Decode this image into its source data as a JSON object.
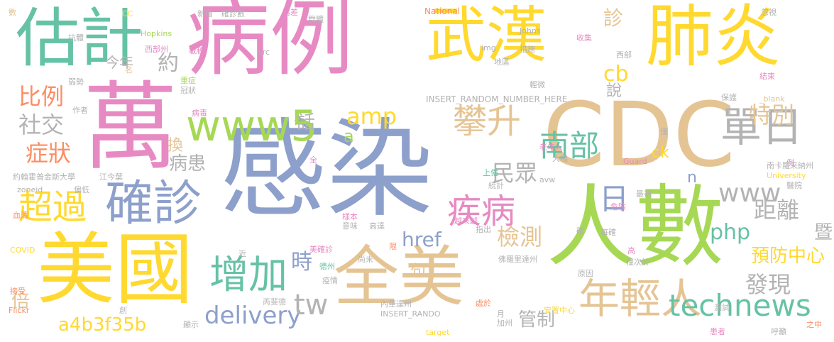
{
  "palette": {
    "blue": "#8da0cb",
    "pink": "#e78ac3",
    "yellow": "#ffd92f",
    "green": "#a6d854",
    "teal": "#66c2a5",
    "orange": "#fc8d62",
    "tan": "#e5c494",
    "gray": "#b3b3b3"
  },
  "words": [
    {
      "text": "感染",
      "color": "#8da0cb"
    },
    {
      "text": "病例",
      "color": "#e78ac3"
    },
    {
      "text": "萬",
      "color": "#e78ac3"
    },
    {
      "text": "CDC",
      "color": "#e5c494"
    },
    {
      "text": "人數",
      "color": "#a6d854"
    },
    {
      "text": "武漢",
      "color": "#ffd92f"
    },
    {
      "text": "肺炎",
      "color": "#ffd92f"
    },
    {
      "text": "美國",
      "color": "#ffd92f"
    },
    {
      "text": "全美",
      "color": "#e5c494"
    },
    {
      "text": "估計",
      "color": "#66c2a5"
    },
    {
      "text": "確診",
      "color": "#8da0cb"
    },
    {
      "text": "年輕人",
      "color": "#e5c494"
    },
    {
      "text": "增加",
      "color": "#66c2a5"
    },
    {
      "text": "www5",
      "color": "#a6d854"
    },
    {
      "text": "單日",
      "color": "#b3b3b3"
    },
    {
      "text": "超過",
      "color": "#ffd92f"
    },
    {
      "text": "technews",
      "color": "#66c2a5"
    },
    {
      "text": "攀升",
      "color": "#e5c494"
    },
    {
      "text": "疾病",
      "color": "#e78ac3"
    },
    {
      "text": "delivery",
      "color": "#8da0cb"
    },
    {
      "text": "南部",
      "color": "#66c2a5"
    },
    {
      "text": "日",
      "color": "#8da0cb"
    },
    {
      "text": "www",
      "color": "#b3b3b3"
    },
    {
      "text": "tw",
      "color": "#b3b3b3"
    },
    {
      "text": "比例",
      "color": "#fc8d62"
    },
    {
      "text": "社交",
      "color": "#b3b3b3"
    },
    {
      "text": "症狀",
      "color": "#fc8d62"
    },
    {
      "text": "amp",
      "color": "#ffd92f"
    },
    {
      "text": "href",
      "color": "#8da0cb"
    },
    {
      "text": "a4b3f35b",
      "color": "#ffd92f"
    },
    {
      "text": "特別",
      "color": "#e5c494"
    },
    {
      "text": "距離",
      "color": "#b3b3b3"
    },
    {
      "text": "發現",
      "color": "#b3b3b3"
    },
    {
      "text": "php",
      "color": "#66c2a5"
    },
    {
      "text": "民眾",
      "color": "#b3b3b3"
    },
    {
      "text": "病患",
      "color": "#b3b3b3"
    },
    {
      "text": "檢測",
      "color": "#e5c494"
    },
    {
      "text": "預防中心",
      "color": "#ffd92f"
    },
    {
      "text": "cb",
      "color": "#ffd92f"
    },
    {
      "text": "ck",
      "color": "#ffd92f"
    },
    {
      "text": "管制",
      "color": "#b3b3b3"
    },
    {
      "text": "時",
      "color": "#8da0cb"
    },
    {
      "text": "暨",
      "color": "#b3b3b3"
    },
    {
      "text": "診",
      "color": "#e5c494"
    },
    {
      "text": "換",
      "color": "#e5c494"
    },
    {
      "text": "約",
      "color": "#b3b3b3"
    },
    {
      "text": "說",
      "color": "#b3b3b3"
    },
    {
      "text": "話",
      "color": "#b3b3b3"
    },
    {
      "text": "倍",
      "color": "#e5c494"
    },
    {
      "text": "a",
      "color": "#a6d854"
    },
    {
      "text": "n",
      "color": "#8da0cb"
    },
    {
      "text": "句",
      "color": "#e5c494"
    },
    {
      "text": "今年",
      "color": "#b3b3b3"
    },
    {
      "text": "INSERT_RANDOM_NUMBER_HERE",
      "color": "#b3b3b3"
    },
    {
      "text": "Hopkins",
      "color": "#a6d854"
    },
    {
      "text": "Johns",
      "color": "#b3b3b3"
    },
    {
      "text": "National",
      "color": "#fc8d62"
    },
    {
      "text": "University",
      "color": "#ffd92f"
    },
    {
      "text": "COVID",
      "color": "#ffd92f"
    },
    {
      "text": "Flickr",
      "color": "#fc8d62"
    },
    {
      "text": "zoneid",
      "color": "#b3b3b3"
    },
    {
      "text": "Guard",
      "color": "#e78ac3"
    },
    {
      "text": "INSERT_RANDO",
      "color": "#b3b3b3"
    },
    {
      "text": "target",
      "color": "#ffd92f"
    },
    {
      "text": "_blank",
      "color": "#e5c494"
    },
    {
      "text": "img",
      "color": "#b3b3b3"
    },
    {
      "text": "src",
      "color": "#b3b3b3"
    },
    {
      "text": "avw",
      "color": "#b3b3b3"
    },
    {
      "text": "CC",
      "color": "#ffd92f"
    },
    {
      "text": "數",
      "color": "#e5c494"
    },
    {
      "text": "抗體",
      "color": "#b3b3b3"
    },
    {
      "text": "西部州",
      "color": "#e78ac3"
    },
    {
      "text": "載稿",
      "color": "#e78ac3"
    },
    {
      "text": "弱勢",
      "color": "#b3b3b3"
    },
    {
      "text": "名",
      "color": "#e5c494"
    },
    {
      "text": "作者",
      "color": "#b3b3b3"
    },
    {
      "text": "重症",
      "color": "#a6d854"
    },
    {
      "text": "冠狀",
      "color": "#b3b3b3"
    },
    {
      "text": "病毒",
      "color": "#e78ac3"
    },
    {
      "text": "約翰霍普金斯大學",
      "color": "#b3b3b3"
    },
    {
      "text": "江今葉",
      "color": "#b3b3b3"
    },
    {
      "text": "偏低",
      "color": "#b3b3b3"
    },
    {
      "text": "血清",
      "color": "#fc8d62"
    },
    {
      "text": "接受",
      "color": "#fc8d62"
    },
    {
      "text": "創",
      "color": "#b3b3b3"
    },
    {
      "text": "新增",
      "color": "#b3b3b3"
    },
    {
      "text": "確診數",
      "color": "#b3b3b3"
    },
    {
      "text": "群體",
      "color": "#b3b3b3"
    },
    {
      "text": "落差",
      "color": "#e78ac3"
    },
    {
      "text": "全",
      "color": "#e78ac3"
    },
    {
      "text": "上億",
      "color": "#66c2a5"
    },
    {
      "text": "統計",
      "color": "#b3b3b3"
    },
    {
      "text": "樣本",
      "color": "#e78ac3"
    },
    {
      "text": "意味",
      "color": "#b3b3b3"
    },
    {
      "text": "高達",
      "color": "#b3b3b3"
    },
    {
      "text": "越來越",
      "color": "#e78ac3"
    },
    {
      "text": "指出",
      "color": "#b3b3b3"
    },
    {
      "text": "美確診",
      "color": "#e78ac3"
    },
    {
      "text": "德州",
      "color": "#66c2a5"
    },
    {
      "text": "近",
      "color": "#b3b3b3"
    },
    {
      "text": "限",
      "color": "#fc8d62"
    },
    {
      "text": "尚未",
      "color": "#b3b3b3"
    },
    {
      "text": "疫情",
      "color": "#b3b3b3"
    },
    {
      "text": "芮斐德",
      "color": "#b3b3b3"
    },
    {
      "text": "顯示",
      "color": "#b3b3b3"
    },
    {
      "text": "內華達州",
      "color": "#b3b3b3"
    },
    {
      "text": "處於",
      "color": "#fc8d62"
    },
    {
      "text": "月",
      "color": "#b3b3b3"
    },
    {
      "text": "加州",
      "color": "#b3b3b3"
    },
    {
      "text": "安置中心",
      "color": "#ffd92f"
    },
    {
      "text": "收集",
      "color": "#e78ac3"
    },
    {
      "text": "措施",
      "color": "#b3b3b3"
    },
    {
      "text": "地區",
      "color": "#b3b3b3"
    },
    {
      "text": "輕微",
      "color": "#b3b3b3"
    },
    {
      "text": "西部",
      "color": "#b3b3b3"
    },
    {
      "text": "結束",
      "color": "#e78ac3"
    },
    {
      "text": "忽視",
      "color": "#b3b3b3"
    },
    {
      "text": "保護",
      "color": "#b3b3b3"
    },
    {
      "text": "老年人",
      "color": "#e78ac3"
    },
    {
      "text": "大幅",
      "color": "#b3b3b3"
    },
    {
      "text": "僅",
      "color": "#b3b3b3"
    },
    {
      "text": "例",
      "color": "#e78ac3"
    },
    {
      "text": "南卡羅來納州",
      "color": "#b3b3b3"
    },
    {
      "text": "最初",
      "color": "#b3b3b3"
    },
    {
      "text": "醫院",
      "color": "#b3b3b3"
    },
    {
      "text": "危險",
      "color": "#e78ac3"
    },
    {
      "text": "確",
      "color": "#b3b3b3"
    },
    {
      "text": "每確",
      "color": "#b3b3b3"
    },
    {
      "text": "高",
      "color": "#e78ac3"
    },
    {
      "text": "佛羅里達州",
      "color": "#b3b3b3"
    },
    {
      "text": "僅次於",
      "color": "#b3b3b3"
    },
    {
      "text": "原因",
      "color": "#b3b3b3"
    },
    {
      "text": "測試",
      "color": "#b3b3b3"
    },
    {
      "text": "患者",
      "color": "#e78ac3"
    },
    {
      "text": "呼籲",
      "color": "#b3b3b3"
    },
    {
      "text": "之中",
      "color": "#fc8d62"
    }
  ]
}
